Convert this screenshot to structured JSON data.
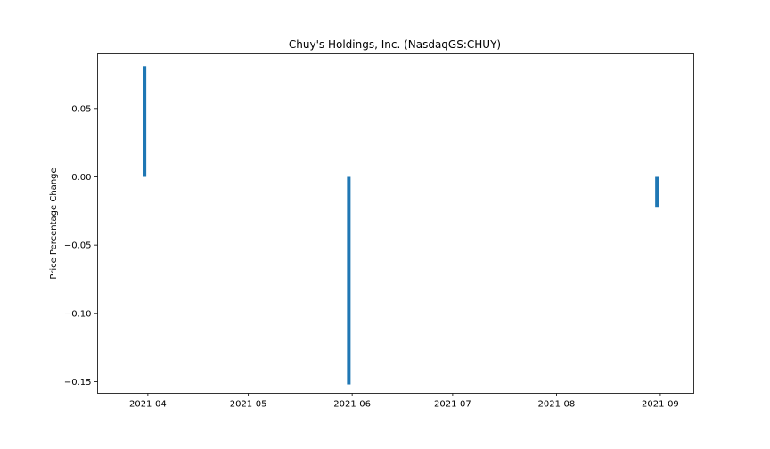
{
  "chart_data": {
    "type": "bar",
    "title": "Chuy's Holdings, Inc. (NasdaqGS:CHUY)",
    "xlabel": "",
    "ylabel": "Price Percentage Change",
    "x_ticks": [
      "2021-04",
      "2021-05",
      "2021-06",
      "2021-07",
      "2021-08",
      "2021-09"
    ],
    "y_ticks": [
      0.05,
      0.0,
      -0.05,
      -0.1,
      -0.15
    ],
    "y_tick_labels": [
      "0.05",
      "0.00",
      "−0.05",
      "−0.10",
      "−0.15"
    ],
    "xlim": [
      "2021-03-17",
      "2021-09-11"
    ],
    "ylim": [
      -0.1585,
      0.09
    ],
    "grid": false,
    "legend": "none",
    "bar_color": "#1f77b4",
    "series": [
      {
        "x": [
          "2021-03-31",
          "2021-05-31",
          "2021-08-31"
        ],
        "values": [
          0.081,
          -0.152,
          -0.022
        ]
      }
    ]
  }
}
